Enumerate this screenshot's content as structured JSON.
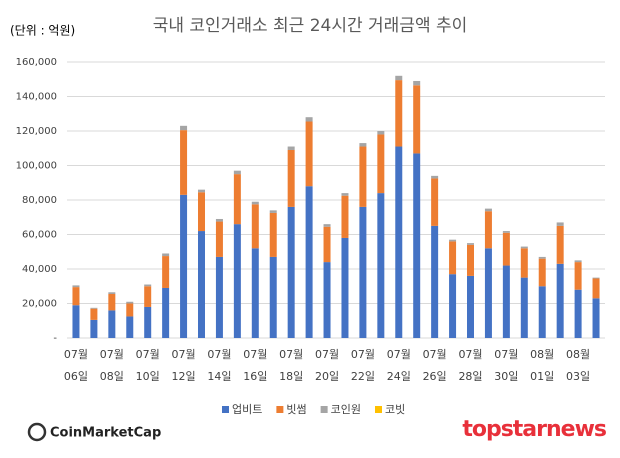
{
  "chart_data": {
    "type": "stacked_bar",
    "title": "국내 코인거래소 최근 24시간 거래금액 추이",
    "unit_label": "(단위 : 억원)",
    "categories": [
      "07월\n06일",
      null,
      "07월\n08일",
      null,
      "07월\n10일",
      null,
      "07월\n12일",
      null,
      "07월\n14일",
      null,
      "07월\n16일",
      null,
      "07월\n18일",
      null,
      "07월\n20일",
      null,
      "07월\n22일",
      null,
      "07월\n24일",
      null,
      "07월\n26일",
      null,
      "07월\n28일",
      null,
      "07월\n30일",
      null,
      "08월\n01일",
      null,
      "08월\n03일",
      null
    ],
    "series": [
      {
        "name": "업비트",
        "color": "#4472c4",
        "values": [
          19000,
          10500,
          16000,
          12500,
          18000,
          29000,
          83000,
          62000,
          47000,
          66000,
          52000,
          47000,
          76000,
          88000,
          44000,
          58000,
          76000,
          84000,
          111000,
          107000,
          65000,
          37000,
          36000,
          52000,
          42000,
          35000,
          30000,
          43000,
          28000,
          23000
        ]
      },
      {
        "name": "빗썸",
        "color": "#ed7d31",
        "values": [
          10500,
          6500,
          9500,
          7500,
          12000,
          18500,
          37500,
          22500,
          20500,
          29000,
          25500,
          25500,
          33000,
          37500,
          20500,
          24500,
          35000,
          34000,
          38500,
          39500,
          27500,
          19000,
          18000,
          21500,
          19000,
          17000,
          16000,
          22000,
          16000,
          11500
        ]
      },
      {
        "name": "코인원",
        "color": "#a5a5a5",
        "values": [
          1000,
          500,
          1000,
          1000,
          1000,
          1500,
          2500,
          1500,
          1500,
          2000,
          1500,
          1500,
          2000,
          2500,
          1500,
          1500,
          2000,
          2000,
          2500,
          2500,
          1500,
          1000,
          1000,
          1500,
          1000,
          1000,
          1000,
          2000,
          1000,
          500
        ]
      },
      {
        "name": "코빗",
        "color": "#ffc000",
        "values": [
          0,
          0,
          0,
          0,
          0,
          0,
          0,
          0,
          0,
          0,
          0,
          0,
          0,
          0,
          0,
          0,
          0,
          0,
          0,
          0,
          0,
          0,
          0,
          0,
          0,
          0,
          0,
          0,
          0,
          0
        ]
      }
    ],
    "ylim": [
      0,
      160000
    ],
    "yticks": [
      {
        "value": 0,
        "label": "-"
      },
      {
        "value": 20000,
        "label": "20,000"
      },
      {
        "value": 40000,
        "label": "40,000"
      },
      {
        "value": 60000,
        "label": "60,000"
      },
      {
        "value": 80000,
        "label": "80,000"
      },
      {
        "value": 100000,
        "label": "100,000"
      },
      {
        "value": 120000,
        "label": "120,000"
      },
      {
        "value": 140000,
        "label": "140,000"
      },
      {
        "value": 160000,
        "label": "160,000"
      }
    ],
    "grid": true,
    "legend": "bottom"
  },
  "source_logo": "CoinMarketCap",
  "watermark": "topstarnews"
}
